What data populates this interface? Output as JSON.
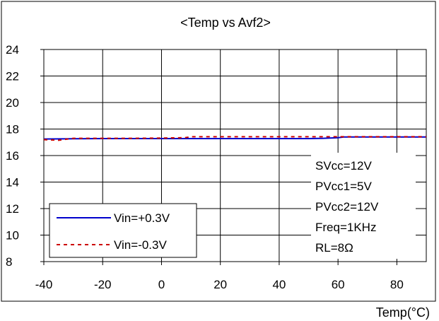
{
  "chart_data": {
    "type": "line",
    "title": "<Temp vs Avf2>",
    "xlabel": "Temp(°C)",
    "ylabel": "",
    "xlim": [
      -40,
      90
    ],
    "ylim": [
      8,
      24
    ],
    "xticks": [
      -40,
      -20,
      0,
      20,
      40,
      60,
      80
    ],
    "yticks": [
      8,
      10,
      12,
      14,
      16,
      18,
      20,
      22,
      24
    ],
    "grid": true,
    "legend_position": "bottom-left",
    "series": [
      {
        "name": "Vin=+0.3V",
        "color": "#0000cc",
        "style": "solid",
        "x": [
          -40,
          -30,
          -20,
          -10,
          0,
          10,
          20,
          30,
          40,
          50,
          55,
          60,
          62,
          70,
          80,
          90
        ],
        "y": [
          17.25,
          17.27,
          17.28,
          17.28,
          17.28,
          17.28,
          17.28,
          17.28,
          17.28,
          17.28,
          17.3,
          17.35,
          17.4,
          17.4,
          17.4,
          17.4
        ]
      },
      {
        "name": "Vin=-0.3V",
        "color": "#cc0000",
        "style": "dashed",
        "x": [
          -40,
          -35,
          -30,
          -20,
          -10,
          0,
          8,
          10,
          20,
          30,
          40,
          50,
          60,
          70,
          80,
          90
        ],
        "y": [
          17.2,
          17.15,
          17.3,
          17.3,
          17.3,
          17.32,
          17.35,
          17.42,
          17.42,
          17.42,
          17.42,
          17.42,
          17.42,
          17.42,
          17.42,
          17.42
        ]
      }
    ],
    "annotations": [
      "SVcc=12V",
      "PVcc1=5V",
      "PVcc2=12V",
      "Freq=1KHz",
      "RL=8Ω"
    ]
  }
}
